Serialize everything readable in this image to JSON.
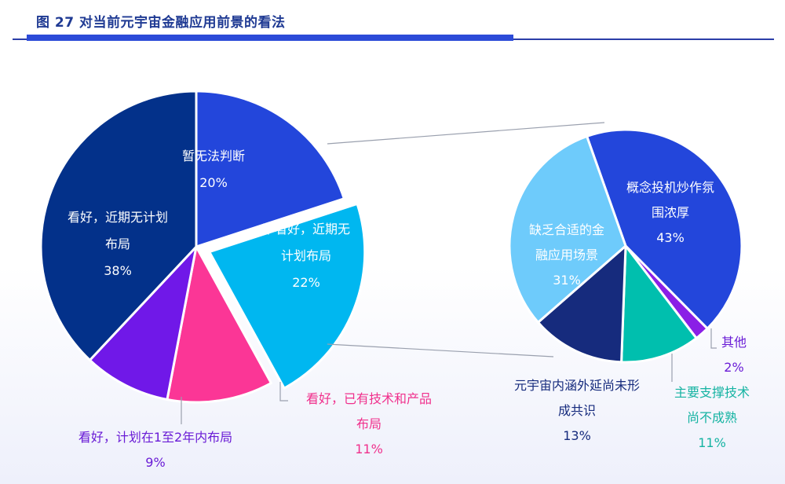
{
  "chart_data": [
    {
      "type": "pie",
      "title": "图 27 对当前元宇宙金融应用前景的看法",
      "slices": [
        {
          "name": "main-undecided",
          "label": [
            "暂无法判断"
          ],
          "pct": "20%",
          "value": 20,
          "color": "#2346db"
        },
        {
          "name": "main-not-optimistic",
          "label": [
            "不看好，近期无",
            "计划布局"
          ],
          "pct": "22%",
          "value": 22,
          "color": "#00b7f0"
        },
        {
          "name": "main-already-have",
          "label": [
            "看好，已有技术和产品",
            "布局"
          ],
          "pct": "11%",
          "value": 11,
          "color": "#fb3696"
        },
        {
          "name": "main-plan-1-2",
          "label": [
            "看好，计划在1至2年内布局"
          ],
          "pct": "9%",
          "value": 9,
          "color": "#7018e8"
        },
        {
          "name": "main-no-plan",
          "label": [
            "看好，近期无计划",
            "布局"
          ],
          "pct": "38%",
          "value": 38,
          "color": "#03318a"
        }
      ]
    },
    {
      "type": "pie",
      "title": "",
      "slices": [
        {
          "name": "reasons-hype",
          "label": [
            "概念投机炒作氛",
            "围浓厚"
          ],
          "pct": "43%",
          "value": 43,
          "color": "#2346db"
        },
        {
          "name": "reasons-other",
          "label": [
            "其他"
          ],
          "pct": "2%",
          "value": 2,
          "color": "#8a1fe6"
        },
        {
          "name": "reasons-support",
          "label": [
            "主要支撑技术",
            "尚不成熟"
          ],
          "pct": "11%",
          "value": 11,
          "color": "#00bfae"
        },
        {
          "name": "reasons-consensus",
          "label": [
            "元宇宙内涵外延尚未形",
            "成共识"
          ],
          "pct": "13%",
          "value": 13,
          "color": "#162b7d"
        },
        {
          "name": "reasons-lack",
          "label": [
            "缺乏合适的金",
            "融应用场景"
          ],
          "pct": "31%",
          "value": 31,
          "color": "#6ecbfb"
        }
      ]
    }
  ]
}
